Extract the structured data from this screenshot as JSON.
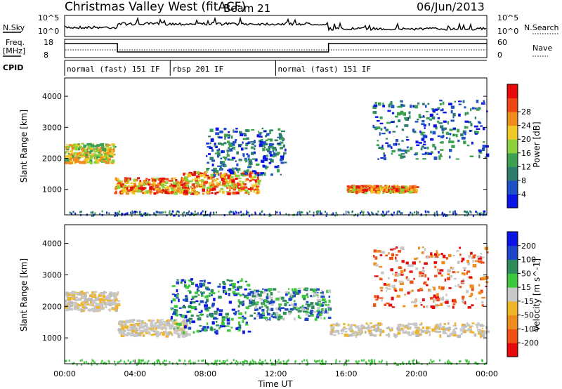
{
  "header": {
    "station": "Christmas Valley West (fitACF)",
    "beam": "Beam 21",
    "date": "06/Jun/2013"
  },
  "strip_labels": {
    "nsky": "N.Sky",
    "nsky_ticks": [
      "10^5",
      "10^0"
    ],
    "nsearch": "N.Search",
    "nsearch_ticks": [
      "10^5",
      "10^0"
    ],
    "freq": "Freq.",
    "freq_unit": "[MHz]",
    "freq_ticks": [
      "18",
      "8"
    ],
    "nave": "Nave",
    "nave_ticks": [
      "60",
      "0"
    ],
    "cpid": "CPID"
  },
  "cpid_segments": [
    {
      "label": "normal (fast) 151 IF",
      "start_hour": 0,
      "end_hour": 6
    },
    {
      "label": "rbsp 201 IF",
      "start_hour": 6,
      "end_hour": 12
    },
    {
      "label": "normal (fast) 151 IF",
      "start_hour": 12,
      "end_hour": 24
    }
  ],
  "chart_data": [
    {
      "type": "heatmap",
      "name": "power",
      "ylabel": "Slant Range [km]",
      "ylim": [
        180,
        4590
      ],
      "yticks": [
        "1000",
        "2000",
        "3000",
        "4000"
      ],
      "xlim_hours": [
        0,
        24
      ],
      "colorbar": {
        "label": "Power [dB]",
        "ticks": [
          "4",
          "8",
          "12",
          "16",
          "20",
          "24",
          "28"
        ],
        "colors": [
          "#0a14e6",
          "#1e50c8",
          "#2d7d6e",
          "#3ca050",
          "#8cd23c",
          "#f0c828",
          "#f08c1e",
          "#f04614",
          "#e60a0a"
        ]
      },
      "echo_regions": [
        {
          "x0": 0.0,
          "x1": 2.8,
          "y0": 1900,
          "y1": 2500,
          "level": "mid"
        },
        {
          "x0": 2.8,
          "x1": 7.0,
          "y0": 900,
          "y1": 1400,
          "level": "high"
        },
        {
          "x0": 6.5,
          "x1": 11.0,
          "y0": 900,
          "y1": 1600,
          "level": "high"
        },
        {
          "x0": 8.0,
          "x1": 12.5,
          "y0": 1500,
          "y1": 3000,
          "level": "low"
        },
        {
          "x0": 16.0,
          "x1": 20.0,
          "y0": 950,
          "y1": 1150,
          "level": "high"
        },
        {
          "x0": 17.5,
          "x1": 24.0,
          "y0": 2000,
          "y1": 3900,
          "level": "low"
        }
      ]
    },
    {
      "type": "heatmap",
      "name": "velocity",
      "ylabel": "Slant Range [km]",
      "xlabel": "Time UT",
      "ylim": [
        180,
        4590
      ],
      "yticks": [
        "1000",
        "2000",
        "3000",
        "4000"
      ],
      "xticks": [
        "00:00",
        "04:00",
        "08:00",
        "12:00",
        "16:00",
        "20:00",
        "00:00"
      ],
      "xlim_hours": [
        0,
        24
      ],
      "colorbar": {
        "label": "Velocity [m s^-1]",
        "ticks": [
          "200",
          "100",
          "50",
          "15",
          "-15",
          "-50",
          "-100",
          "-200"
        ],
        "colors": [
          "#0a14e6",
          "#1e46c8",
          "#2d8c5a",
          "#3cc83c",
          "#c8c8c8",
          "#f0b428",
          "#f08c1e",
          "#f05014",
          "#e60a0a"
        ]
      },
      "echo_regions": [
        {
          "x0": 0.0,
          "x1": 3.0,
          "y0": 1900,
          "y1": 2500,
          "level": "ground"
        },
        {
          "x0": 3.0,
          "x1": 7.0,
          "y0": 1100,
          "y1": 1600,
          "level": "ground"
        },
        {
          "x0": 6.0,
          "x1": 10.5,
          "y0": 1200,
          "y1": 2900,
          "level": "away"
        },
        {
          "x0": 10.5,
          "x1": 15.0,
          "y0": 1600,
          "y1": 2600,
          "level": "slow-away"
        },
        {
          "x0": 17.5,
          "x1": 24.0,
          "y0": 2000,
          "y1": 3900,
          "level": "toward"
        },
        {
          "x0": 15.0,
          "x1": 24.0,
          "y0": 1100,
          "y1": 1500,
          "level": "ground"
        }
      ]
    }
  ]
}
